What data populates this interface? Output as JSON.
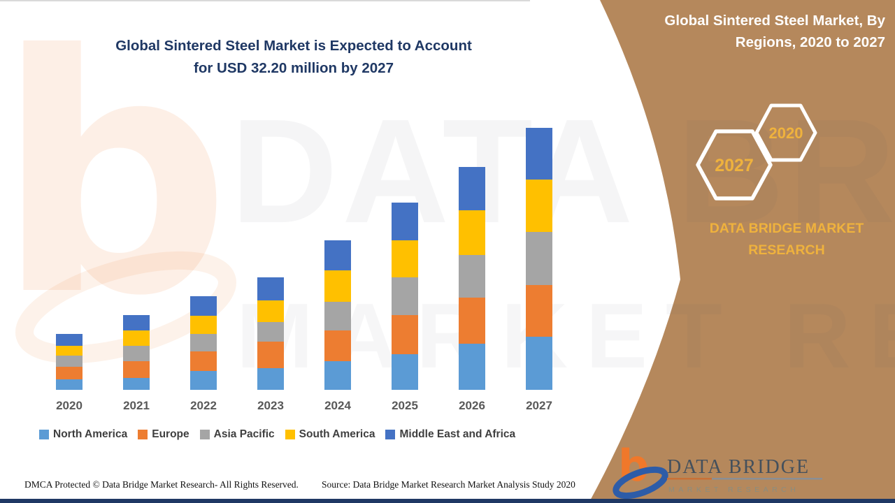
{
  "header": {
    "chart_title_line1": "Global Sintered Steel Market is Expected to Account",
    "chart_title_line2": "for USD 32.20 million by 2027",
    "panel_title_line1": "Global Sintered Steel Market, By",
    "panel_title_line2": "Regions, 2020 to 2027"
  },
  "panel": {
    "hexagon_front_label": "2027",
    "hexagon_back_label": "2020",
    "brand_line1": "DATA BRIDGE MARKET",
    "brand_line2": "RESEARCH",
    "colors": {
      "background": "#B5885C",
      "accent_gold": "#EFB23D",
      "hexagon_stroke": "#FFFFFF",
      "title_text": "#FFFFFF"
    }
  },
  "watermark": {
    "letter": "b",
    "line1": "DATA BRIDGE",
    "line2": "MARKET RESEARCH"
  },
  "logo": {
    "title": "DATA BRIDGE",
    "subtitle": "MARKET RESEARCH"
  },
  "footer": {
    "left": "DMCA Protected © Data Bridge Market Research- All Rights Reserved.",
    "right": "Source: Data Bridge Market Research Market Analysis Study 2020"
  },
  "chart_data": {
    "type": "bar",
    "stacked": true,
    "title": "Global Sintered Steel Market is Expected to Account for USD 32.20 million by 2027",
    "unit": "USD million",
    "xlabel": "",
    "ylabel": "",
    "ylim": [
      0,
      35
    ],
    "grid": false,
    "legend_position": "bottom",
    "highlight_total_2027": 32.2,
    "categories": [
      "2020",
      "2021",
      "2022",
      "2023",
      "2024",
      "2025",
      "2026",
      "2027"
    ],
    "series": [
      {
        "name": "North America",
        "color": "#5B9BD5",
        "values": [
          1.3,
          1.5,
          2.3,
          2.7,
          3.5,
          4.4,
          5.7,
          6.5
        ]
      },
      {
        "name": "Europe",
        "color": "#ED7D31",
        "values": [
          1.5,
          2.0,
          2.4,
          3.2,
          3.8,
          4.8,
          5.6,
          6.4
        ]
      },
      {
        "name": "Asia Pacific",
        "color": "#A5A5A5",
        "values": [
          1.4,
          1.9,
          2.2,
          2.4,
          3.5,
          4.6,
          5.3,
          6.5
        ]
      },
      {
        "name": "South America",
        "color": "#FFC000",
        "values": [
          1.2,
          1.9,
          2.2,
          2.7,
          3.9,
          4.6,
          5.5,
          6.4
        ]
      },
      {
        "name": "Middle East and Africa",
        "color": "#4472C4",
        "values": [
          1.5,
          1.9,
          2.4,
          2.8,
          3.7,
          4.6,
          5.3,
          6.4
        ]
      }
    ],
    "totals": [
      6.9,
      9.2,
      11.5,
      13.8,
      18.4,
      23.0,
      27.4,
      32.2
    ]
  }
}
